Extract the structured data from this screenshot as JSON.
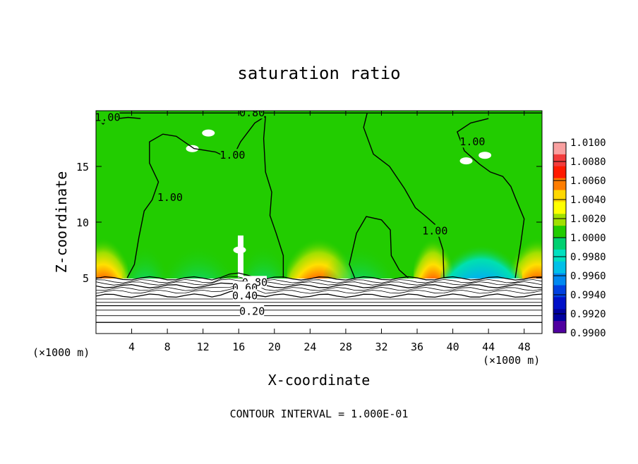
{
  "chart_data": {
    "type": "heatmap",
    "title": "saturation ratio",
    "xlabel": "X-coordinate",
    "ylabel": "Z-coordinate",
    "x_units": "(×1000 m)",
    "z_units": "(×1000 m)",
    "footer": "CONTOUR INTERVAL = 1.000E-01",
    "xlim": [
      0,
      50
    ],
    "ylim": [
      0,
      20
    ],
    "x_ticks": [
      "4",
      "8",
      "12",
      "16",
      "20",
      "24",
      "28",
      "32",
      "36",
      "40",
      "44",
      "48"
    ],
    "x_tick_values": [
      4,
      8,
      12,
      16,
      20,
      24,
      28,
      32,
      36,
      40,
      44,
      48
    ],
    "y_ticks": [
      "5",
      "10",
      "15"
    ],
    "y_tick_values": [
      5,
      10,
      15
    ],
    "colorbar": {
      "labels": [
        "1.0100",
        "1.0080",
        "1.0060",
        "1.0040",
        "1.0020",
        "1.0000",
        "0.9980",
        "0.9960",
        "0.9940",
        "0.9920",
        "0.9900"
      ],
      "values": [
        1.01,
        1.008,
        1.006,
        1.004,
        1.002,
        1.0,
        0.998,
        0.996,
        0.994,
        0.992,
        0.99
      ],
      "colors": [
        "#f9a0a0",
        "#f23c3c",
        "#ff1a00",
        "#ff7d00",
        "#ffd800",
        "#ffff00",
        "#a0e000",
        "#22cc00",
        "#00d070",
        "#00e0c0",
        "#00c0e8",
        "#0088f0",
        "#0040e0",
        "#0010c8",
        "#0000a0",
        "#5000a0"
      ]
    },
    "contour_labels": [
      {
        "text": "1.00",
        "x": 1.3,
        "z": 19.4
      },
      {
        "text": "0.80",
        "x": 17.5,
        "z": 19.8
      },
      {
        "text": "1.00",
        "x": 15.3,
        "z": 16.0
      },
      {
        "text": "1.00",
        "x": 8.3,
        "z": 12.2
      },
      {
        "text": "1.00",
        "x": 42.2,
        "z": 17.2
      },
      {
        "text": "1.00",
        "x": 38.0,
        "z": 9.2
      },
      {
        "text": "0.80",
        "x": 17.8,
        "z": 4.6
      },
      {
        "text": "0.60",
        "x": 16.7,
        "z": 4.1
      },
      {
        "text": "0.40",
        "x": 16.7,
        "z": 3.4
      },
      {
        "text": "0.20",
        "x": 17.5,
        "z": 2.0
      }
    ]
  }
}
